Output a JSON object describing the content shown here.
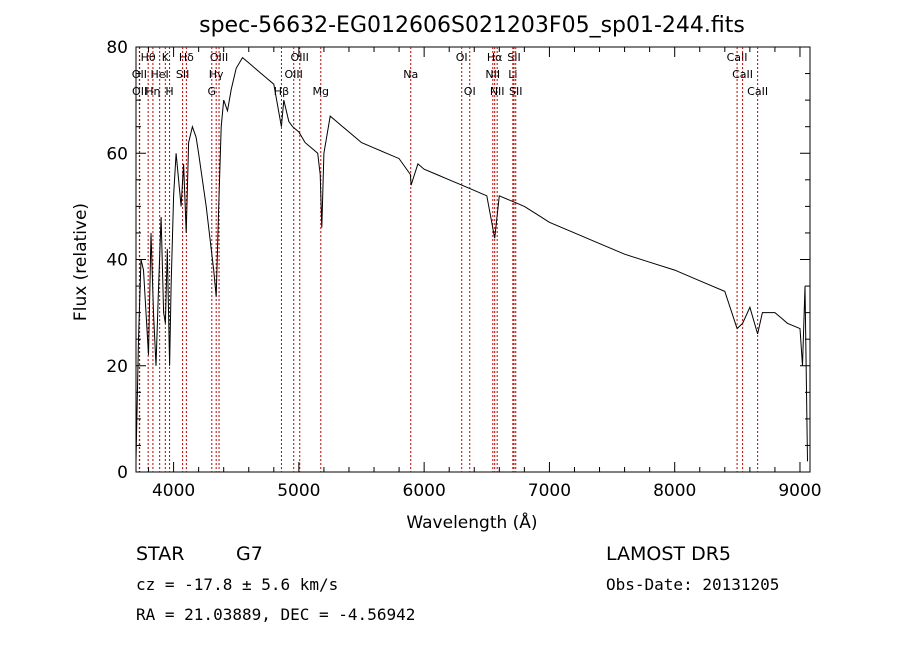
{
  "chart_data": {
    "type": "line",
    "title": "spec-56632-EG012606S021203F05_sp01-244.fits",
    "xlabel": "Wavelength (Å)",
    "ylabel": "Flux (relative)",
    "xlim": [
      3700,
      9080
    ],
    "ylim": [
      0,
      80
    ],
    "xticks": [
      4000,
      5000,
      6000,
      7000,
      8000,
      9000
    ],
    "yticks": [
      0,
      20,
      40,
      60,
      80
    ],
    "grid": false,
    "series": [
      {
        "x": [
          3700,
          3720,
          3740,
          3760,
          3780,
          3800,
          3820,
          3840,
          3860,
          3880,
          3900,
          3920,
          3935,
          3950,
          3968,
          3980,
          4000,
          4020,
          4040,
          4060,
          4080,
          4101,
          4120,
          4150,
          4180,
          4200,
          4230,
          4260,
          4300,
          4320,
          4340,
          4360,
          4380,
          4400,
          4430,
          4460,
          4500,
          4550,
          4600,
          4650,
          4700,
          4750,
          4800,
          4861,
          4880,
          4900,
          4920,
          4950,
          5000,
          5050,
          5100,
          5150,
          5170,
          5183,
          5200,
          5250,
          5300,
          5350,
          5400,
          5450,
          5500,
          5600,
          5700,
          5800,
          5890,
          5896,
          5950,
          6000,
          6100,
          6200,
          6300,
          6400,
          6500,
          6563,
          6600,
          6700,
          6800,
          6900,
          7000,
          7200,
          7400,
          7600,
          7800,
          8000,
          8200,
          8400,
          8498,
          8542,
          8600,
          8662,
          8700,
          8800,
          8850,
          8900,
          9000,
          9020,
          9040,
          9060
        ],
        "y": [
          2,
          25,
          40,
          38,
          30,
          22,
          45,
          30,
          20,
          35,
          48,
          30,
          28,
          42,
          20,
          35,
          52,
          60,
          55,
          50,
          58,
          45,
          62,
          65,
          63,
          60,
          55,
          50,
          42,
          38,
          33,
          50,
          65,
          70,
          68,
          72,
          76,
          78,
          77,
          76,
          75,
          74,
          73,
          65,
          70,
          68,
          66,
          65,
          64,
          62,
          61,
          60,
          56,
          46,
          60,
          67,
          66,
          65,
          64,
          63,
          62,
          61,
          60,
          59,
          56,
          54,
          58,
          57,
          56,
          55,
          54,
          53,
          52,
          44,
          52,
          51,
          50,
          48.5,
          47,
          45,
          43,
          41,
          39.5,
          38,
          36,
          34,
          27,
          28,
          31,
          26,
          30,
          30,
          29,
          28,
          27,
          20,
          35,
          2
        ]
      }
    ],
    "spectral_lines": [
      {
        "label": "Hθ",
        "wavelength": 3797,
        "row": 1
      },
      {
        "label": "K",
        "wavelength": 3934,
        "row": 1
      },
      {
        "label": "Hδ",
        "wavelength": 4102,
        "row": 1
      },
      {
        "label": "OIII",
        "wavelength": 4363,
        "row": 1
      },
      {
        "label": "OIII",
        "wavelength": 5007,
        "row": 1
      },
      {
        "label": "OI",
        "wavelength": 6300,
        "row": 1
      },
      {
        "label": "Hα",
        "wavelength": 6563,
        "row": 1
      },
      {
        "label": "SII",
        "wavelength": 6717,
        "row": 1
      },
      {
        "label": "CaII",
        "wavelength": 8498,
        "row": 1
      },
      {
        "label": "OII",
        "wavelength": 3727,
        "row": 2
      },
      {
        "label": "HeI",
        "wavelength": 3889,
        "row": 2
      },
      {
        "label": "SII",
        "wavelength": 4072,
        "row": 2
      },
      {
        "label": "Hγ",
        "wavelength": 4340,
        "row": 2
      },
      {
        "label": "OIII",
        "wavelength": 4959,
        "row": 2
      },
      {
        "label": "Na",
        "wavelength": 5893,
        "row": 2
      },
      {
        "label": "NII",
        "wavelength": 6548,
        "row": 2
      },
      {
        "label": "Li",
        "wavelength": 6708,
        "row": 2
      },
      {
        "label": "CaII",
        "wavelength": 8542,
        "row": 2
      },
      {
        "label": "OII",
        "wavelength": 3729,
        "row": 3
      },
      {
        "label": "Hη",
        "wavelength": 3835,
        "row": 3
      },
      {
        "label": "H",
        "wavelength": 3968,
        "row": 3
      },
      {
        "label": "G",
        "wavelength": 4305,
        "row": 3
      },
      {
        "label": "Hβ",
        "wavelength": 4861,
        "row": 3
      },
      {
        "label": "Mg",
        "wavelength": 5175,
        "row": 3
      },
      {
        "label": "OI",
        "wavelength": 6364,
        "row": 3
      },
      {
        "label": "NII",
        "wavelength": 6583,
        "row": 3
      },
      {
        "label": "SII",
        "wavelength": 6731,
        "row": 3
      },
      {
        "label": "CaII",
        "wavelength": 8662,
        "row": 3
      }
    ]
  },
  "info": {
    "class_label": "STAR",
    "subclass": "G7",
    "survey": "LAMOST DR5",
    "cz_line": "cz = -17.8 ± 5.6 km/s",
    "obs_date": "Obs-Date: 20131205",
    "coords": "RA =  21.03889, DEC =  -4.56942"
  }
}
